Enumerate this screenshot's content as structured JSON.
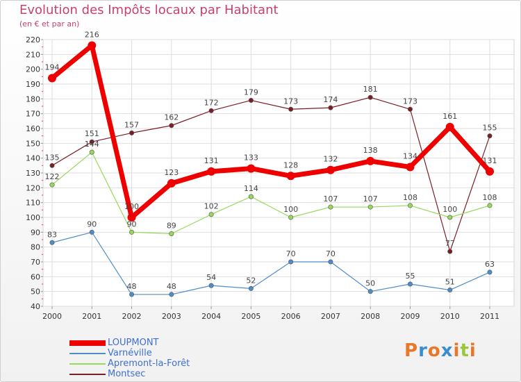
{
  "header": {
    "title": "Evolution des Impôts locaux par Habitant",
    "subtitle": "(en € et par an)"
  },
  "chart_data": {
    "type": "line",
    "title": "Evolution des Impôts locaux par Habitant",
    "ylabel": "(en € et par an)",
    "xlabel": "",
    "categories": [
      "2000",
      "2001",
      "2002",
      "2003",
      "2004",
      "2005",
      "2006",
      "2007",
      "2008",
      "2009",
      "2010",
      "2011"
    ],
    "ylim": [
      40,
      220
    ],
    "yticks": [
      40,
      50,
      60,
      70,
      80,
      90,
      100,
      110,
      120,
      130,
      140,
      150,
      160,
      170,
      180,
      190,
      200,
      210,
      220
    ],
    "grid": true,
    "legend_position": "bottom-left",
    "series": [
      {
        "name": "LOUPMONT",
        "color": "#ee0000",
        "values": [
          194,
          216,
          100,
          123,
          131,
          133,
          128,
          132,
          138,
          134,
          161,
          131
        ]
      },
      {
        "name": "Varnéville",
        "color": "#4f8dc8",
        "values": [
          83,
          90,
          48,
          48,
          54,
          52,
          70,
          70,
          50,
          55,
          51,
          63
        ]
      },
      {
        "name": "Apremont-la-Forêt",
        "color": "#96d85a",
        "values": [
          122,
          144,
          90,
          89,
          102,
          114,
          100,
          107,
          107,
          108,
          100,
          108
        ]
      },
      {
        "name": "Montsec",
        "color": "#7a1e24",
        "values": [
          135,
          151,
          157,
          162,
          172,
          179,
          173,
          174,
          181,
          173,
          77,
          155
        ]
      }
    ]
  },
  "logo": {
    "letters": [
      "P",
      "r",
      "o",
      "x",
      "i",
      "t",
      "i"
    ],
    "colors": [
      "#e8772a",
      "#3a8ed0",
      "#e8772a",
      "#3a8ed0",
      "#e8772a",
      "#9bc83a",
      "#e8772a"
    ]
  }
}
